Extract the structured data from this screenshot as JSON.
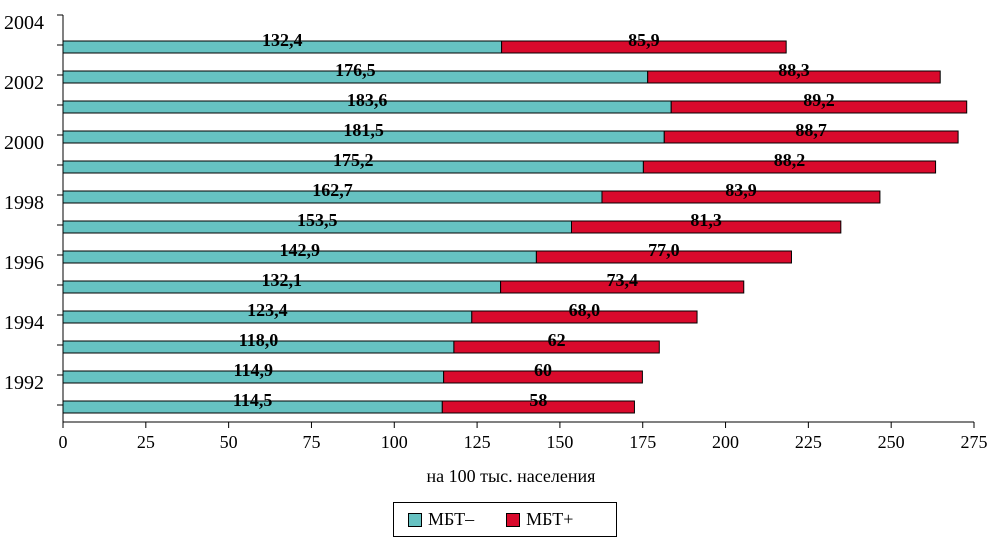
{
  "chart_data": {
    "type": "bar",
    "orientation": "horizontal",
    "stacked": true,
    "xlabel": "на 100 тыс. населения",
    "xlim": [
      0,
      275
    ],
    "x_ticks": [
      0,
      25,
      50,
      75,
      100,
      125,
      150,
      175,
      200,
      225,
      250,
      275
    ],
    "year_axis_labels": [
      "2004",
      "2002",
      "2000",
      "1998",
      "1996",
      "1994",
      "1992"
    ],
    "rows": 13,
    "series": [
      {
        "name": "МБТ–",
        "color": "#66c2c2",
        "values": [
          132.4,
          176.5,
          183.6,
          181.5,
          175.2,
          162.7,
          153.5,
          142.9,
          132.1,
          123.4,
          118.0,
          114.9,
          114.5
        ],
        "labels": [
          "132,4",
          "176,5",
          "183,6",
          "181,5",
          "175,2",
          "162,7",
          "153,5",
          "142,9",
          "132,1",
          "123,4",
          "118,0",
          "114,9",
          "114,5"
        ]
      },
      {
        "name": "МБТ+",
        "color": "#d90a2c",
        "values": [
          85.9,
          88.3,
          89.2,
          88.7,
          88.2,
          83.9,
          81.3,
          77.0,
          73.4,
          68.0,
          62,
          60,
          58
        ],
        "labels": [
          "85,9",
          "88,3",
          "89,2",
          "88,7",
          "88,2",
          "83,9",
          "81,3",
          "77,0",
          "73,4",
          "68,0",
          "62",
          "60",
          "58"
        ]
      }
    ],
    "legend": {
      "position": "bottom"
    },
    "grid": false
  }
}
